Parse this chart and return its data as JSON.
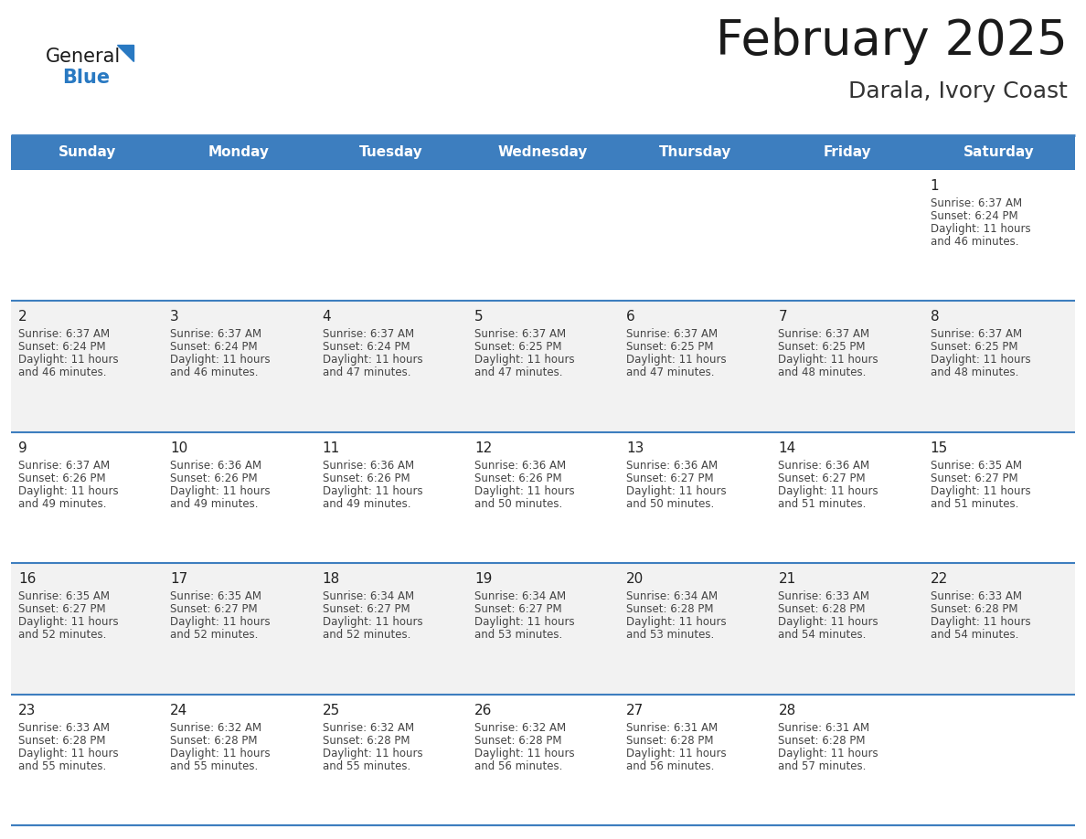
{
  "title": "February 2025",
  "subtitle": "Darala, Ivory Coast",
  "header_bg": "#3d7ebf",
  "header_text": "#FFFFFF",
  "header_days": [
    "Sunday",
    "Monday",
    "Tuesday",
    "Wednesday",
    "Thursday",
    "Friday",
    "Saturday"
  ],
  "row_bg_alt": "#F2F2F2",
  "row_bg_white": "#FFFFFF",
  "sep_line_color": "#3d7ebf",
  "day_number_color": "#222222",
  "info_text_color": "#444444",
  "title_color": "#1a1a1a",
  "subtitle_color": "#333333",
  "logo_general_color": "#1a1a1a",
  "logo_blue_color": "#2979c2",
  "calendar_data": [
    [
      null,
      null,
      null,
      null,
      null,
      null,
      {
        "day": 1,
        "sunrise": "6:37 AM",
        "sunset": "6:24 PM",
        "daylight": "11 hours and 46 minutes."
      }
    ],
    [
      {
        "day": 2,
        "sunrise": "6:37 AM",
        "sunset": "6:24 PM",
        "daylight": "11 hours and 46 minutes."
      },
      {
        "day": 3,
        "sunrise": "6:37 AM",
        "sunset": "6:24 PM",
        "daylight": "11 hours and 46 minutes."
      },
      {
        "day": 4,
        "sunrise": "6:37 AM",
        "sunset": "6:24 PM",
        "daylight": "11 hours and 47 minutes."
      },
      {
        "day": 5,
        "sunrise": "6:37 AM",
        "sunset": "6:25 PM",
        "daylight": "11 hours and 47 minutes."
      },
      {
        "day": 6,
        "sunrise": "6:37 AM",
        "sunset": "6:25 PM",
        "daylight": "11 hours and 47 minutes."
      },
      {
        "day": 7,
        "sunrise": "6:37 AM",
        "sunset": "6:25 PM",
        "daylight": "11 hours and 48 minutes."
      },
      {
        "day": 8,
        "sunrise": "6:37 AM",
        "sunset": "6:25 PM",
        "daylight": "11 hours and 48 minutes."
      }
    ],
    [
      {
        "day": 9,
        "sunrise": "6:37 AM",
        "sunset": "6:26 PM",
        "daylight": "11 hours and 49 minutes."
      },
      {
        "day": 10,
        "sunrise": "6:36 AM",
        "sunset": "6:26 PM",
        "daylight": "11 hours and 49 minutes."
      },
      {
        "day": 11,
        "sunrise": "6:36 AM",
        "sunset": "6:26 PM",
        "daylight": "11 hours and 49 minutes."
      },
      {
        "day": 12,
        "sunrise": "6:36 AM",
        "sunset": "6:26 PM",
        "daylight": "11 hours and 50 minutes."
      },
      {
        "day": 13,
        "sunrise": "6:36 AM",
        "sunset": "6:27 PM",
        "daylight": "11 hours and 50 minutes."
      },
      {
        "day": 14,
        "sunrise": "6:36 AM",
        "sunset": "6:27 PM",
        "daylight": "11 hours and 51 minutes."
      },
      {
        "day": 15,
        "sunrise": "6:35 AM",
        "sunset": "6:27 PM",
        "daylight": "11 hours and 51 minutes."
      }
    ],
    [
      {
        "day": 16,
        "sunrise": "6:35 AM",
        "sunset": "6:27 PM",
        "daylight": "11 hours and 52 minutes."
      },
      {
        "day": 17,
        "sunrise": "6:35 AM",
        "sunset": "6:27 PM",
        "daylight": "11 hours and 52 minutes."
      },
      {
        "day": 18,
        "sunrise": "6:34 AM",
        "sunset": "6:27 PM",
        "daylight": "11 hours and 52 minutes."
      },
      {
        "day": 19,
        "sunrise": "6:34 AM",
        "sunset": "6:27 PM",
        "daylight": "11 hours and 53 minutes."
      },
      {
        "day": 20,
        "sunrise": "6:34 AM",
        "sunset": "6:28 PM",
        "daylight": "11 hours and 53 minutes."
      },
      {
        "day": 21,
        "sunrise": "6:33 AM",
        "sunset": "6:28 PM",
        "daylight": "11 hours and 54 minutes."
      },
      {
        "day": 22,
        "sunrise": "6:33 AM",
        "sunset": "6:28 PM",
        "daylight": "11 hours and 54 minutes."
      }
    ],
    [
      {
        "day": 23,
        "sunrise": "6:33 AM",
        "sunset": "6:28 PM",
        "daylight": "11 hours and 55 minutes."
      },
      {
        "day": 24,
        "sunrise": "6:32 AM",
        "sunset": "6:28 PM",
        "daylight": "11 hours and 55 minutes."
      },
      {
        "day": 25,
        "sunrise": "6:32 AM",
        "sunset": "6:28 PM",
        "daylight": "11 hours and 55 minutes."
      },
      {
        "day": 26,
        "sunrise": "6:32 AM",
        "sunset": "6:28 PM",
        "daylight": "11 hours and 56 minutes."
      },
      {
        "day": 27,
        "sunrise": "6:31 AM",
        "sunset": "6:28 PM",
        "daylight": "11 hours and 56 minutes."
      },
      {
        "day": 28,
        "sunrise": "6:31 AM",
        "sunset": "6:28 PM",
        "daylight": "11 hours and 57 minutes."
      },
      null
    ]
  ]
}
